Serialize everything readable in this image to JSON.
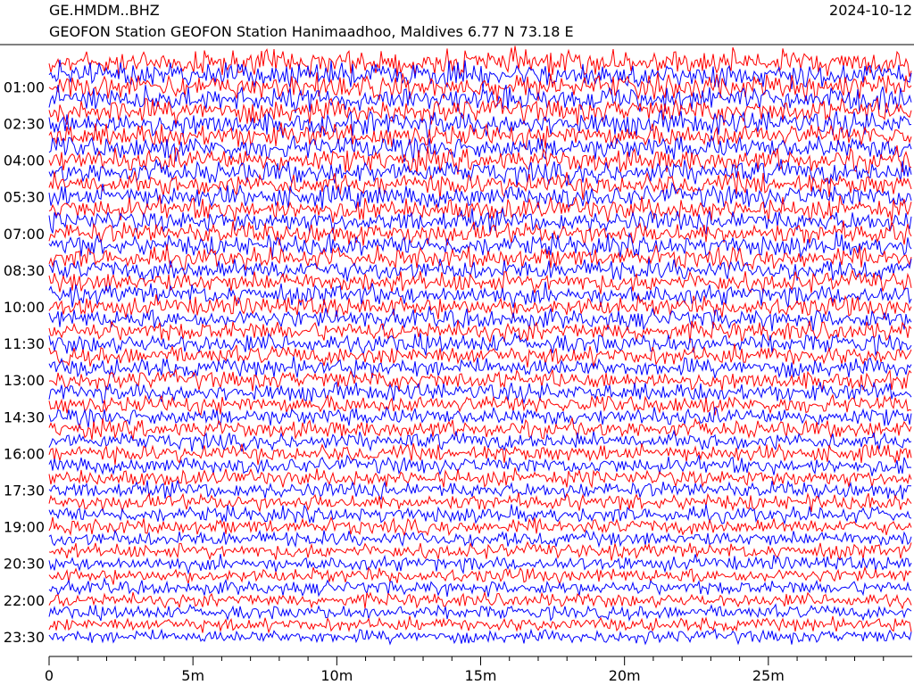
{
  "chart_data": {
    "type": "helicorder",
    "title": "GE.HMDM..BHZ",
    "date": "2024-10-12",
    "subtitle": "GEOFON Station GEOFON Station Hanimaadhoo, Maldives  6.77 N 73.18 E",
    "y_labels": [
      "01:00",
      "02:30",
      "04:00",
      "05:30",
      "07:00",
      "08:30",
      "10:00",
      "11:30",
      "13:00",
      "14:30",
      "16:00",
      "17:30",
      "19:00",
      "20:30",
      "22:00",
      "23:30"
    ],
    "trace_colors": [
      "#ff0000",
      "#0000ff"
    ],
    "xlim": [
      0,
      30
    ],
    "xticks": [
      0,
      {
        "value": 5,
        "label": "5m"
      },
      {
        "value": 10,
        "label": "10m"
      },
      {
        "value": 15,
        "label": "15m"
      },
      {
        "value": 20,
        "label": "20m"
      },
      {
        "value": 25,
        "label": "25m"
      }
    ],
    "x_minor_ticks": [
      1,
      2,
      3,
      4,
      6,
      7,
      8,
      9,
      11,
      12,
      13,
      14,
      16,
      17,
      18,
      19,
      21,
      22,
      23,
      24,
      26,
      27,
      28,
      29
    ]
  }
}
